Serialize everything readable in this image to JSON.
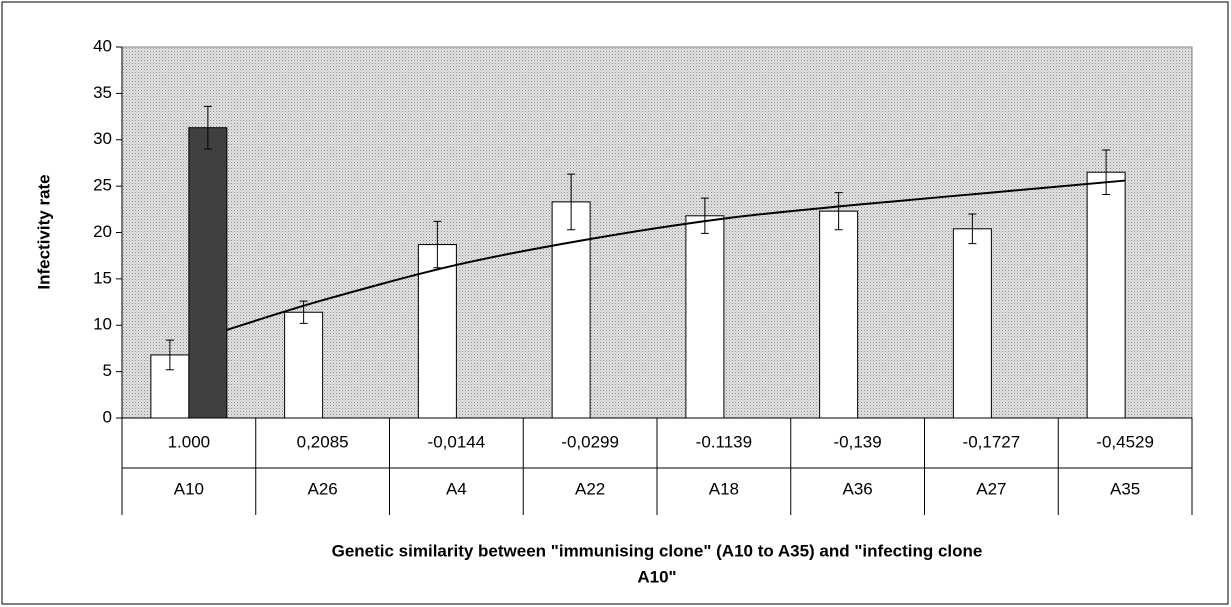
{
  "chart_data": {
    "type": "bar",
    "ylabel": "Infectivity rate",
    "xlabel": [
      "Genetic similarity between \"immunising clone\" (A10 to A35) and \"infecting clone",
      "A10\""
    ],
    "similarity": [
      "1.000",
      "0,2085",
      "-0,0144",
      "-0,0299",
      "-0.1139",
      "-0,139",
      "-0,1727",
      "-0,4529"
    ],
    "categories": [
      "A10",
      "A26",
      "A4",
      "A22",
      "A18",
      "A36",
      "A27",
      "A35"
    ],
    "series": [
      {
        "color": "#ffffff",
        "values": [
          6.8,
          11.4,
          18.7,
          23.3,
          21.8,
          22.3,
          20.4,
          26.5
        ],
        "errors": [
          1.6,
          1.2,
          2.5,
          3.0,
          1.9,
          2.0,
          1.6,
          2.4
        ]
      },
      {
        "color": "#404040",
        "values": [
          31.3,
          null,
          null,
          null,
          null,
          null,
          null,
          null
        ],
        "errors": [
          2.3,
          null,
          null,
          null,
          null,
          null,
          null,
          null
        ]
      }
    ],
    "trendline": {
      "color": "#000000",
      "values": [
        9.5,
        12.7,
        16.5,
        19.3,
        21.5,
        23.0,
        24.3,
        25.6
      ]
    },
    "ylim": [
      0,
      40
    ],
    "yticks": [
      0,
      5,
      10,
      15,
      20,
      25,
      30,
      35,
      40
    ]
  }
}
